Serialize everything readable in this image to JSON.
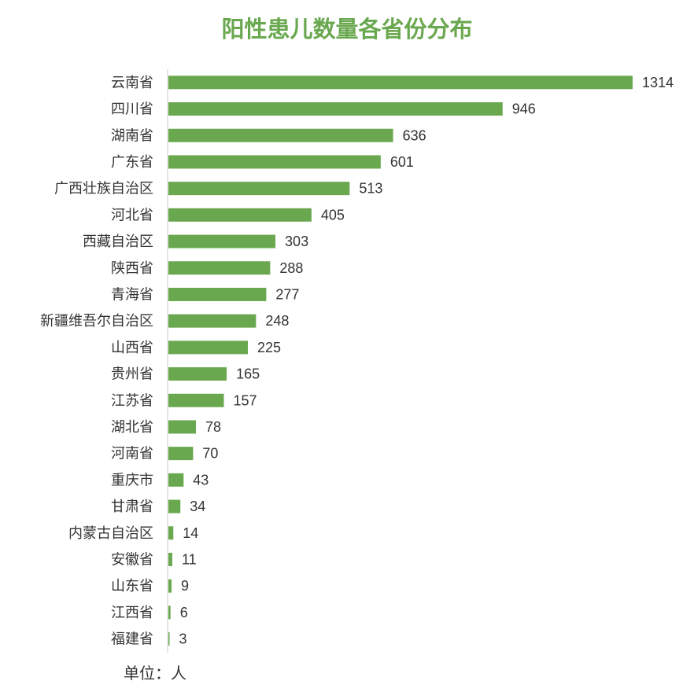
{
  "chart_data": {
    "type": "bar",
    "orientation": "horizontal",
    "title": "阳性患儿数量各省份分布",
    "unit_label": "单位：人",
    "categories": [
      "云南省",
      "四川省",
      "湖南省",
      "广东省",
      "广西壮族自治区",
      "河北省",
      "西藏自治区",
      "陕西省",
      "青海省",
      "新疆维吾尔自治区",
      "山西省",
      "贵州省",
      "江苏省",
      "湖北省",
      "河南省",
      "重庆市",
      "甘肃省",
      "内蒙古自治区",
      "安徽省",
      "山东省",
      "江西省",
      "福建省"
    ],
    "values": [
      1314,
      946,
      636,
      601,
      513,
      405,
      303,
      288,
      277,
      248,
      225,
      165,
      157,
      78,
      70,
      43,
      34,
      14,
      11,
      9,
      6,
      3
    ],
    "bar_color": "#6aa84f",
    "axis_color": "#cccccc",
    "grid": false
  }
}
